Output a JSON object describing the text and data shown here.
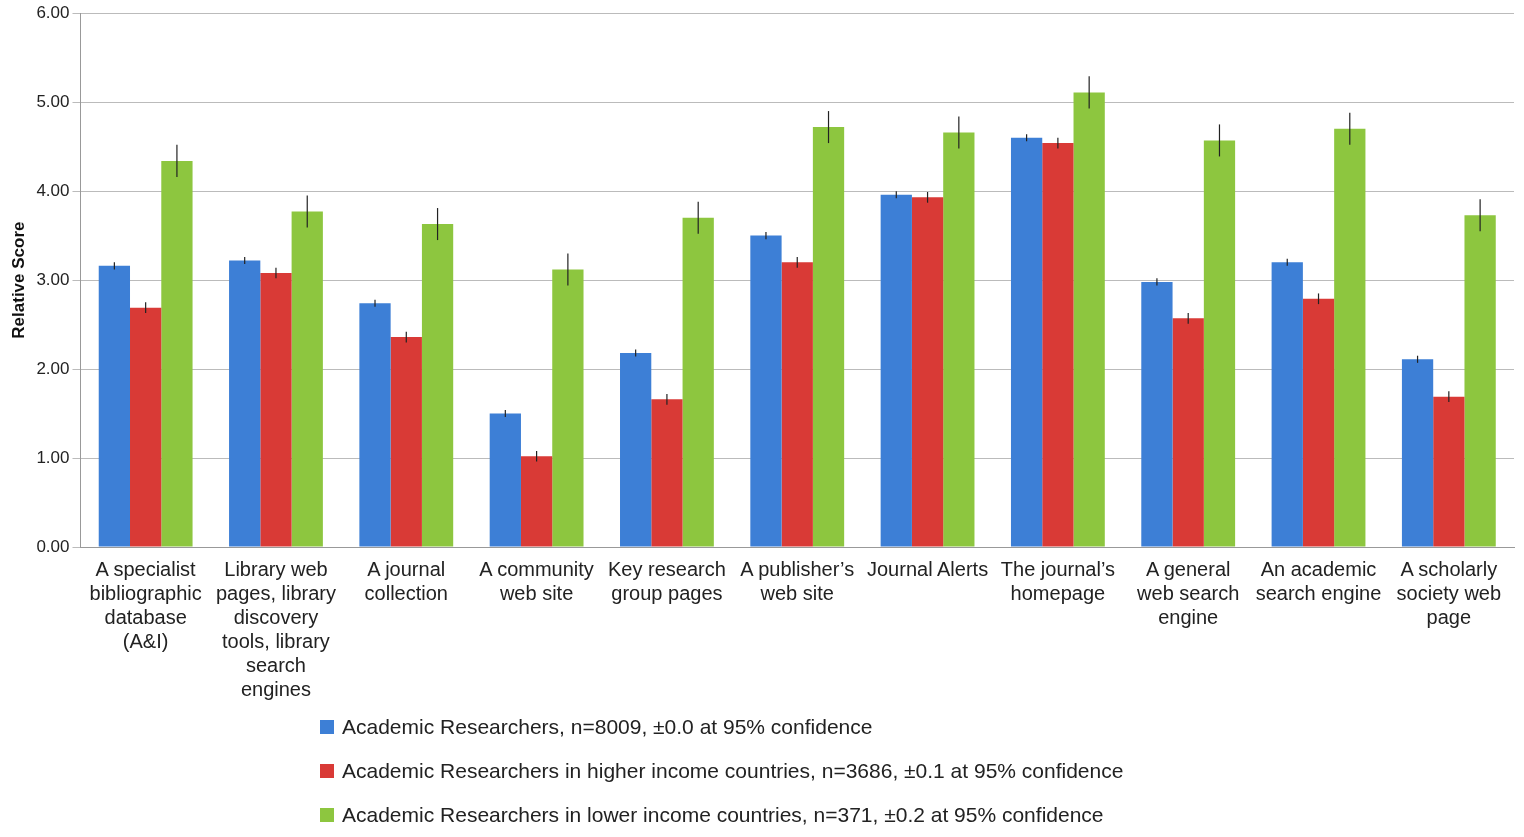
{
  "chart_data": {
    "type": "bar",
    "ylabel": "Relative Score",
    "categories": [
      "A specialist bibliographic database (A&I)",
      "Library web pages, library discovery tools, library search engines",
      "A journal collection",
      "A community web site",
      "Key research group pages",
      "A publisher’s web site",
      "Journal Alerts",
      "The journal’s homepage",
      "A general web search engine",
      "An academic search engine",
      "A scholarly society web page"
    ],
    "series": [
      {
        "name": "Academic Researchers, n=8009, ±0.0 at 95% confidence",
        "color": "#3d7fd6",
        "values": [
          3.16,
          3.22,
          2.74,
          1.5,
          2.18,
          3.5,
          3.96,
          4.6,
          2.98,
          3.2,
          2.11
        ],
        "errors": [
          0.04,
          0.04,
          0.04,
          0.04,
          0.04,
          0.04,
          0.04,
          0.04,
          0.04,
          0.04,
          0.04
        ]
      },
      {
        "name": "Academic Researchers in higher income countries, n=3686, ±0.1 at 95% confidence",
        "color": "#d93a36",
        "values": [
          2.69,
          3.08,
          2.36,
          1.02,
          1.66,
          3.2,
          3.93,
          4.54,
          2.57,
          2.79,
          1.69
        ],
        "errors": [
          0.06,
          0.06,
          0.06,
          0.06,
          0.06,
          0.06,
          0.06,
          0.06,
          0.06,
          0.06,
          0.06
        ]
      },
      {
        "name": "Academic Researchers in lower income countries, n=371, ±0.2 at 95% confidence",
        "color": "#8dc63f",
        "values": [
          4.34,
          3.77,
          3.63,
          3.12,
          3.7,
          4.72,
          4.66,
          5.11,
          4.57,
          4.7,
          3.73
        ],
        "errors": [
          0.18,
          0.18,
          0.18,
          0.18,
          0.18,
          0.18,
          0.18,
          0.18,
          0.18,
          0.18,
          0.18
        ]
      }
    ],
    "ylim": [
      0,
      6
    ],
    "yticks": [
      {
        "value": 0,
        "label": "0.00"
      },
      {
        "value": 1,
        "label": "1.00"
      },
      {
        "value": 2,
        "label": "2.00"
      },
      {
        "value": 3,
        "label": "3.00"
      },
      {
        "value": 4,
        "label": "4.00"
      },
      {
        "value": 5,
        "label": "5.00"
      },
      {
        "value": 6,
        "label": "6.00"
      }
    ],
    "grid": "y",
    "legend": "bottom"
  }
}
